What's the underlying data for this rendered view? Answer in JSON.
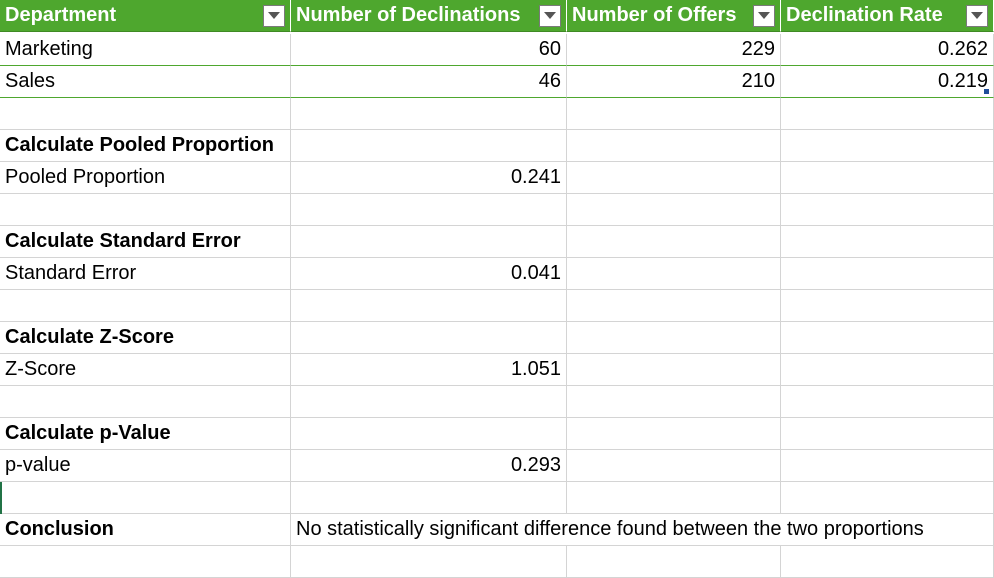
{
  "table": {
    "headers": [
      "Department",
      "Number of Declinations",
      "Number of Offers",
      "Declination Rate"
    ],
    "rows": [
      [
        "Marketing",
        "60",
        "229",
        "0.262"
      ],
      [
        "Sales",
        "46",
        "210",
        "0.219"
      ]
    ]
  },
  "sections": {
    "pooled": {
      "heading": "Calculate Pooled Proportion",
      "label": "Pooled Proportion",
      "value": "0.241"
    },
    "stderr": {
      "heading": "Calculate Standard Error",
      "label": "Standard Error",
      "value": "0.041"
    },
    "zscore": {
      "heading": "Calculate Z-Score",
      "label": "Z-Score",
      "value": "1.051"
    },
    "pvalue": {
      "heading": "Calculate p-Value",
      "label": "p-value",
      "value": "0.293"
    }
  },
  "conclusion": {
    "label": "Conclusion",
    "text": "No statistically significant difference found between the two proportions"
  },
  "colors": {
    "header_fill": "#4ea72e",
    "header_text": "#ffffff",
    "gridline": "#d4d4d4"
  },
  "icons": {
    "filter": "dropdown-arrow-icon"
  }
}
